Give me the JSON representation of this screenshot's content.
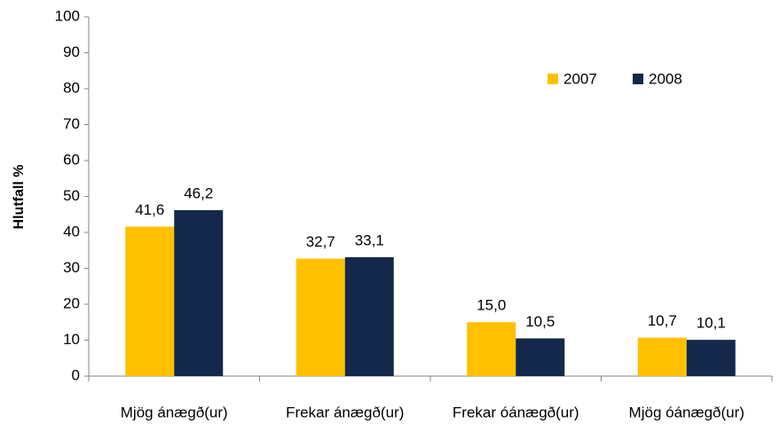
{
  "chart_data": {
    "type": "bar",
    "y_label": "Hlutfall %",
    "categories": [
      "Mjög ánægð(ur)",
      "Frekar ánægð(ur)",
      "Frekar óánægð(ur)",
      "Mjög óánægð(ur)"
    ],
    "series": [
      {
        "name": "2007",
        "color": "#ffc000",
        "values": [
          41.6,
          32.7,
          15.0,
          10.7
        ],
        "value_labels": [
          "41,6",
          "32,7",
          "15,0",
          "10,7"
        ]
      },
      {
        "name": "2008",
        "color": "#14284b",
        "values": [
          46.2,
          33.1,
          10.5,
          10.1
        ],
        "value_labels": [
          "46,2",
          "33,1",
          "10,5",
          "10,1"
        ]
      }
    ],
    "ylim": [
      0,
      100
    ],
    "yticks": [
      0,
      10,
      20,
      30,
      40,
      50,
      60,
      70,
      80,
      90,
      100
    ],
    "legend": "upper right"
  }
}
